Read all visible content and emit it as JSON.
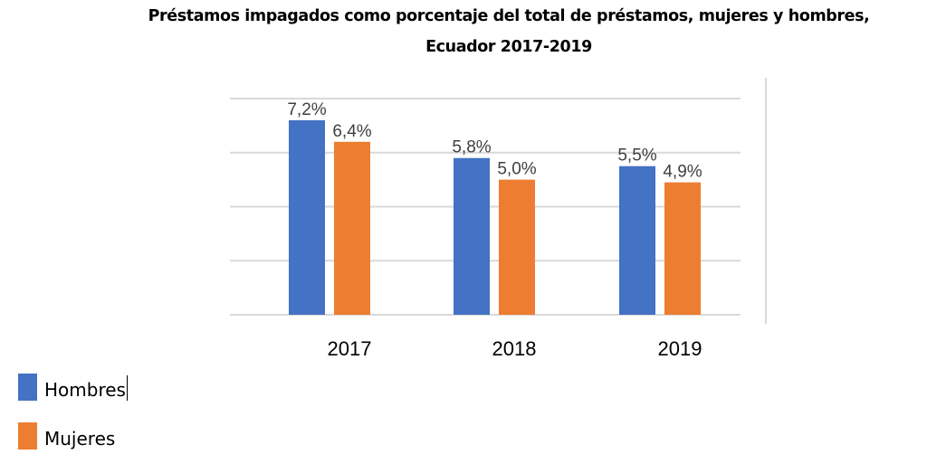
{
  "chart_data": {
    "type": "bar",
    "title": "Préstamos impagados como porcentaje del total de préstamos, mujeres y hombres, Ecuador 2017-2019",
    "title_lines": [
      "Préstamos impagados como porcentaje del total de préstamos, mujeres y hombres,",
      "Ecuador 2017-2019"
    ],
    "categories": [
      "2017",
      "2018",
      "2019"
    ],
    "series": [
      {
        "name": "Hombres",
        "values": [
          7.2,
          5.8,
          5.5
        ],
        "labels": [
          "7,2%",
          "5,8%",
          "5,5%"
        ],
        "color": "#4472C4"
      },
      {
        "name": "Mujeres",
        "values": [
          6.4,
          5.0,
          4.9
        ],
        "labels": [
          "6,4%",
          "5,0%",
          "4,9%"
        ],
        "color": "#ED7D31"
      }
    ],
    "xlabel": "",
    "ylabel": "",
    "ylim": [
      0,
      8
    ],
    "gridlines": [
      0,
      2,
      4,
      6,
      8
    ],
    "grid": true,
    "y_tick_labels_visible": false,
    "legend_position": "bottom-left",
    "gridline_color": "#D9D9D9"
  }
}
